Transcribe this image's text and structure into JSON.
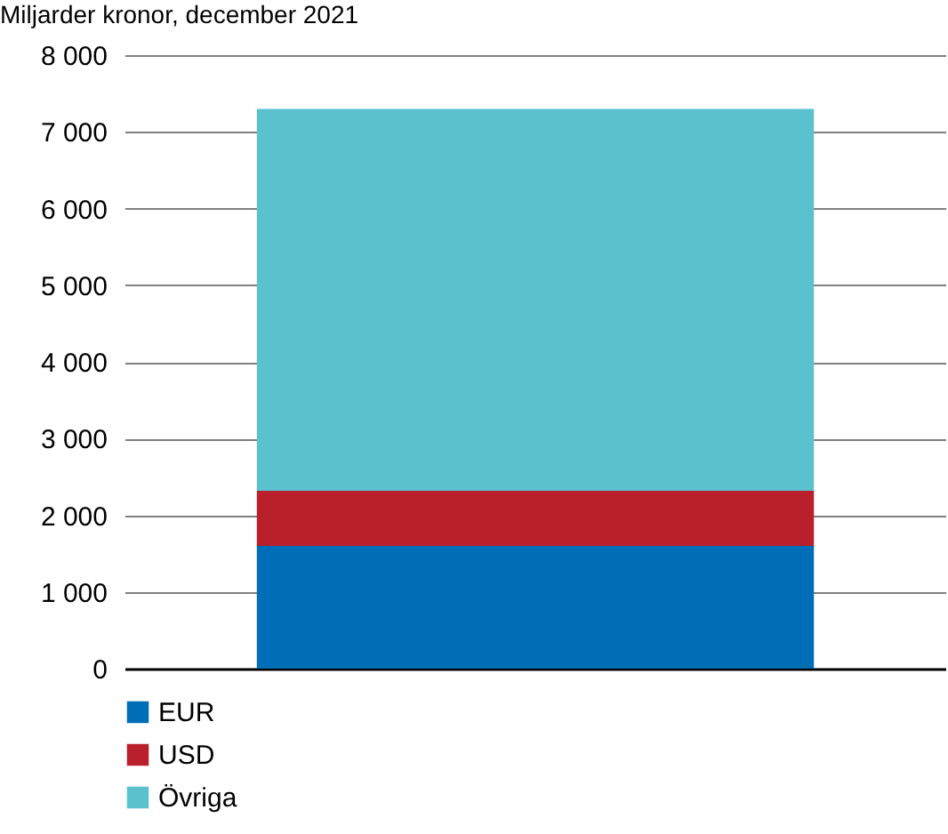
{
  "chart_data": {
    "type": "bar",
    "subtitle": "Miljarder kronor, december 2021",
    "categories": [
      null
    ],
    "stacked": true,
    "series": [
      {
        "name": "EUR",
        "color": "#006eb6",
        "values": [
          1600
        ]
      },
      {
        "name": "USD",
        "color": "#ba1f2c",
        "values": [
          720
        ]
      },
      {
        "name": "Övriga",
        "color": "#5bc1cf",
        "values": [
          4980
        ]
      }
    ],
    "ylim": [
      0,
      8000
    ],
    "yticks": [
      {
        "value": 0,
        "label": "0"
      },
      {
        "value": 1000,
        "label": "1 000"
      },
      {
        "value": 2000,
        "label": "2 000"
      },
      {
        "value": 3000,
        "label": "3 000"
      },
      {
        "value": 4000,
        "label": "4 000"
      },
      {
        "value": 5000,
        "label": "5 000"
      },
      {
        "value": 6000,
        "label": "6 000"
      },
      {
        "value": 7000,
        "label": "7 000"
      },
      {
        "value": 8000,
        "label": "8 000"
      }
    ],
    "grid": "y",
    "legend": "bottom left"
  }
}
